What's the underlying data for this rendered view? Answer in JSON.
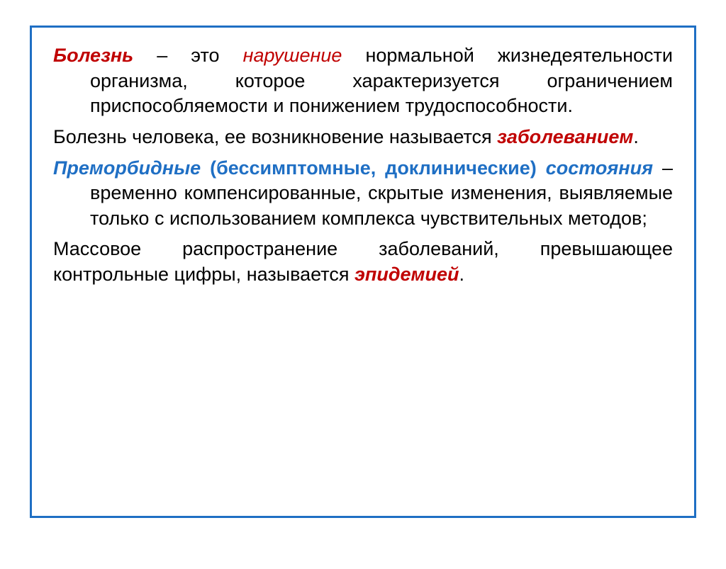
{
  "frame": {
    "border_color": "#1f6fc4",
    "background": "#ffffff"
  },
  "typography": {
    "body_fontsize_pt": 20,
    "line_height": 1.32,
    "font_family": "Arial",
    "text_color": "#000000",
    "red": "#c00000",
    "blue": "#1f6fc4"
  },
  "p1": {
    "t1": "Болезнь",
    "t2": " – это ",
    "t3": "нарушение",
    "t4": " нормальной жизнедеятельности организма, которое характеризуется ограничением приспособляемости и понижением трудоспособности."
  },
  "p2": {
    "t1": "Болезнь человека, ее возникновение называется ",
    "t2": "заболеванием",
    "t3": "."
  },
  "p3": {
    "t1": "Преморбидные",
    "t2": " (бессимптомные, доклинические) ",
    "t3": "состояния",
    "t4": " – временно компенсированные, скрытые изменения, выявляемые только с использованием комплекса чувствительных методов;"
  },
  "p4": {
    "t1": "Массовое распространение заболеваний, превышающее контрольные цифры, называется ",
    "t2": "эпидемией",
    "t3": "."
  }
}
